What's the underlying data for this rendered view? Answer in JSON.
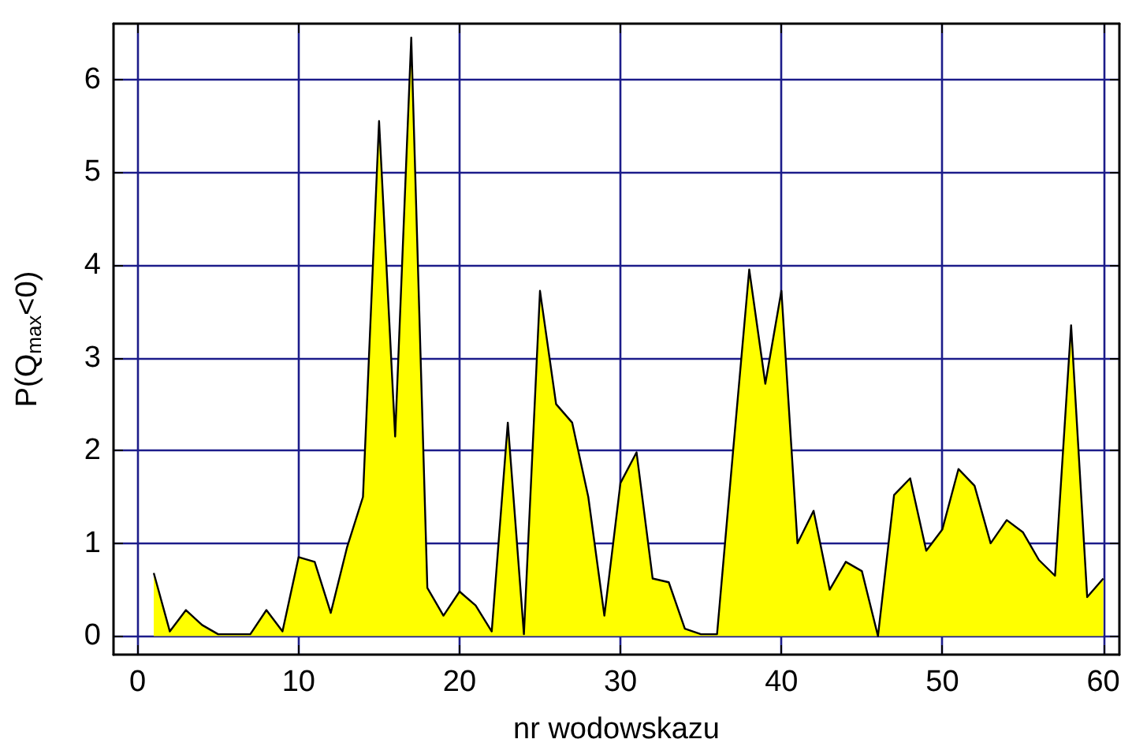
{
  "chart_data": {
    "type": "area",
    "xlabel": "nr wodowskazu",
    "ylabel": "P(Q$_{max}$<0)",
    "x": [
      1,
      2,
      3,
      4,
      5,
      6,
      7,
      8,
      9,
      10,
      11,
      12,
      13,
      14,
      15,
      16,
      17,
      18,
      19,
      20,
      21,
      22,
      23,
      24,
      25,
      26,
      27,
      28,
      29,
      30,
      31,
      32,
      33,
      34,
      35,
      36,
      37,
      38,
      39,
      40,
      41,
      42,
      43,
      44,
      45,
      46,
      47,
      48,
      49,
      50,
      51,
      52,
      53,
      54,
      55,
      56,
      57,
      58,
      59,
      60
    ],
    "series": [
      {
        "color": "#ffff00",
        "values": [
          0.68,
          0.05,
          0.28,
          0.12,
          0.02,
          0.02,
          0.02,
          0.28,
          0.05,
          0.85,
          0.8,
          0.25,
          0.95,
          1.5,
          5.55,
          2.15,
          6.45,
          0.52,
          0.22,
          0.48,
          0.33,
          0.05,
          2.3,
          0.02,
          3.72,
          2.5,
          2.3,
          1.5,
          0.22,
          1.65,
          1.98,
          0.62,
          0.58,
          0.08,
          0.02,
          0.02,
          2.0,
          3.95,
          2.72,
          3.72,
          1.0,
          1.35,
          0.5,
          0.8,
          0.7,
          0.0,
          1.52,
          1.7,
          0.92,
          1.15,
          1.8,
          1.62,
          1.0,
          1.25,
          1.12,
          0.82,
          0.65,
          3.35,
          0.42,
          0.62
        ]
      }
    ],
    "xlim": [
      -1.5,
      61
    ],
    "xticks": [
      0,
      10,
      20,
      30,
      40,
      50,
      60
    ],
    "ylim": [
      -0.2,
      6.6
    ],
    "yticks": [
      0,
      1,
      2,
      3,
      4,
      5,
      6
    ],
    "grid": true,
    "marker": "none",
    "line_style": "solid"
  }
}
